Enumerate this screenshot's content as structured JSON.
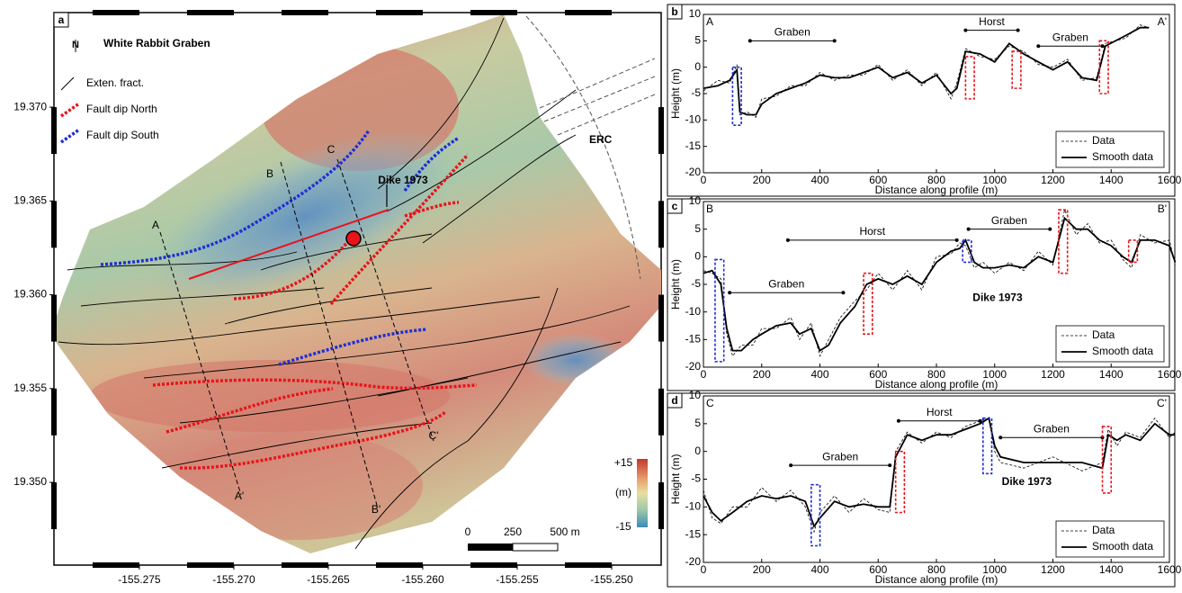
{
  "map": {
    "panel": "a",
    "north": "N",
    "title": "White Rabbit Graben",
    "legend": [
      {
        "label": "Exten. fract.",
        "color": "#000000",
        "style": "line"
      },
      {
        "label": "Fault dip North",
        "color": "#e8141b",
        "style": "dotted"
      },
      {
        "label": "Fault dip South",
        "color": "#1f2fd6",
        "style": "dotted"
      }
    ],
    "profile_labels": [
      "A",
      "B",
      "C",
      "A'",
      "B'",
      "C'"
    ],
    "dike_label": "Dike 1973",
    "erc_label": "ERC",
    "colorbar": {
      "max": "+15",
      "unit": "(m)",
      "min": "-15"
    },
    "scalebar": [
      "0",
      "250",
      "500 m"
    ],
    "xlim": [
      -155.27952,
      -155.24738
    ],
    "ylim": [
      19.34559,
      19.37504
    ],
    "xticks": [
      {
        "value": -155.275,
        "label": "-155.275"
      },
      {
        "value": -155.27,
        "label": "-155.270"
      },
      {
        "value": -155.265,
        "label": "-155.265"
      },
      {
        "value": -155.26,
        "label": "-155.260"
      },
      {
        "value": -155.255,
        "label": "-155.255"
      },
      {
        "value": -155.25,
        "label": "-155.250"
      }
    ],
    "yticks": [
      {
        "value": 19.37,
        "label": "19.370"
      },
      {
        "value": 19.365,
        "label": "19.365"
      },
      {
        "value": 19.36,
        "label": "19.360"
      },
      {
        "value": 19.355,
        "label": "19.355"
      },
      {
        "value": 19.35,
        "label": "19.350"
      }
    ]
  },
  "chart_data": [
    {
      "type": "line",
      "panel": "b",
      "corner_left": "A",
      "corner_right": "A'",
      "xlabel": "Distance along profile (m)",
      "ylabel": "Height (m)",
      "xlim": [
        0,
        1600
      ],
      "xticks": [
        0,
        200,
        400,
        600,
        800,
        1000,
        1200,
        1400,
        1600
      ],
      "ylim": [
        -20,
        10
      ],
      "yticks": [
        -20,
        -15,
        -10,
        -5,
        0,
        5,
        10
      ],
      "x": [
        0,
        50,
        90,
        115,
        125,
        150,
        180,
        200,
        250,
        300,
        350,
        400,
        450,
        500,
        550,
        600,
        650,
        700,
        750,
        800,
        850,
        870,
        900,
        950,
        1000,
        1050,
        1100,
        1150,
        1200,
        1250,
        1300,
        1350,
        1380,
        1450,
        1500,
        1530
      ],
      "series": [
        {
          "name": "Data",
          "color": "#000000",
          "style": "dashed",
          "values": [
            -4.5,
            -2.5,
            -3,
            0.5,
            -9,
            -8.5,
            -9.5,
            -6,
            -5.5,
            -3.5,
            -3.5,
            -1,
            -2.5,
            -1.5,
            -1.5,
            0.5,
            -2.5,
            -0.5,
            -3.5,
            -1,
            -6,
            -3,
            3.5,
            2,
            1.5,
            4,
            3,
            0.5,
            0,
            1.5,
            -2.5,
            -2,
            4.5,
            5.5,
            8,
            7.5
          ]
        },
        {
          "name": "Smooth data",
          "color": "#000000",
          "style": "solid",
          "values": [
            -4,
            -3.5,
            -2.5,
            -0.5,
            -8.5,
            -9,
            -9,
            -7,
            -5,
            -4,
            -3,
            -1.5,
            -2,
            -2,
            -1,
            0,
            -2,
            -1,
            -3,
            -1.5,
            -5,
            -4,
            3,
            2.5,
            1,
            4.5,
            2.5,
            1,
            -0.5,
            1,
            -2,
            -2.5,
            4,
            6,
            7.5,
            7.5
          ]
        }
      ],
      "brackets": [
        {
          "text": "Graben",
          "x": [
            160,
            450
          ],
          "y": 5
        },
        {
          "text": "Horst",
          "x": [
            900,
            1080
          ],
          "y": 7
        },
        {
          "text": "Graben",
          "x": [
            1150,
            1370
          ],
          "y": 4
        }
      ],
      "fault_boxes": [
        {
          "x": [
            100,
            130
          ],
          "y": [
            -11,
            0
          ],
          "color": "#1f2fd6"
        },
        {
          "x": [
            900,
            930
          ],
          "y": [
            -6,
            2
          ],
          "color": "#e8141b"
        },
        {
          "x": [
            1060,
            1090
          ],
          "y": [
            -4,
            3
          ],
          "color": "#e8141b"
        },
        {
          "x": [
            1360,
            1390
          ],
          "y": [
            -5,
            5
          ],
          "color": "#e8141b"
        }
      ],
      "labels": [],
      "legend": "lower right"
    },
    {
      "type": "line",
      "panel": "c",
      "corner_left": "B",
      "corner_right": "B'",
      "xlabel": "Distance along profile (m)",
      "ylabel": "Height (m)",
      "xlim": [
        0,
        1600
      ],
      "xticks": [
        0,
        200,
        400,
        600,
        800,
        1000,
        1200,
        1400,
        1600
      ],
      "ylim": [
        -20,
        10
      ],
      "yticks": [
        -20,
        -15,
        -10,
        -5,
        0,
        5,
        10
      ],
      "x": [
        0,
        30,
        60,
        80,
        100,
        130,
        170,
        200,
        250,
        300,
        330,
        370,
        400,
        430,
        470,
        520,
        560,
        600,
        650,
        700,
        750,
        800,
        850,
        880,
        900,
        930,
        960,
        1000,
        1050,
        1100,
        1150,
        1200,
        1240,
        1280,
        1320,
        1360,
        1400,
        1440,
        1470,
        1500,
        1550,
        1600,
        1620
      ],
      "series": [
        {
          "name": "Data",
          "color": "#000000",
          "style": "dashed",
          "values": [
            -2.5,
            -3,
            -4,
            -14,
            -18,
            -16,
            -16,
            -13,
            -13,
            -11,
            -15,
            -12,
            -18,
            -15,
            -11,
            -8,
            -6,
            -3,
            -6,
            -2.5,
            -6,
            0,
            0.5,
            2.5,
            2,
            -2,
            -1,
            -3,
            -1,
            -2.5,
            1,
            -1.5,
            8.5,
            4,
            6,
            2.5,
            3,
            -0.5,
            -2,
            4,
            2.5,
            3,
            -1.5
          ]
        },
        {
          "name": "Smooth data",
          "color": "#000000",
          "style": "solid",
          "values": [
            -3,
            -2.5,
            -5,
            -13,
            -17,
            -17,
            -15,
            -14,
            -12.5,
            -12,
            -14,
            -13,
            -17,
            -16,
            -12,
            -9,
            -5,
            -4,
            -5,
            -3.5,
            -5,
            -1,
            1,
            1.5,
            3,
            -1,
            -2,
            -2,
            -1.5,
            -2,
            0,
            -1,
            7,
            5,
            5,
            3,
            2,
            0,
            -1,
            3,
            3,
            2,
            -1
          ]
        }
      ],
      "brackets": [
        {
          "text": "Graben",
          "x": [
            90,
            480
          ],
          "y": -6.5
        },
        {
          "text": "Horst",
          "x": [
            290,
            870
          ],
          "y": 3
        },
        {
          "text": "Graben",
          "x": [
            910,
            1190
          ],
          "y": 5
        }
      ],
      "fault_boxes": [
        {
          "x": [
            40,
            70
          ],
          "y": [
            -19,
            -0.5
          ],
          "color": "#1f2fd6"
        },
        {
          "x": [
            550,
            580
          ],
          "y": [
            -14,
            -3
          ],
          "color": "#e8141b"
        },
        {
          "x": [
            890,
            920
          ],
          "y": [
            -1,
            3
          ],
          "color": "#1f2fd6"
        },
        {
          "x": [
            1220,
            1250
          ],
          "y": [
            -3,
            8.5
          ],
          "color": "#e8141b"
        },
        {
          "x": [
            1460,
            1490
          ],
          "y": [
            -1,
            3
          ],
          "color": "#e8141b"
        }
      ],
      "labels": [
        {
          "text": "Dike 1973",
          "x": 1010,
          "y": -7.5
        }
      ],
      "legend": "lower right"
    },
    {
      "type": "line",
      "panel": "d",
      "corner_left": "C",
      "corner_right": "C'",
      "xlabel": "Distance along profile (m)",
      "ylabel": "Height (m)",
      "xlim": [
        0,
        1600
      ],
      "xticks": [
        0,
        200,
        400,
        600,
        800,
        1000,
        1200,
        1400,
        1600
      ],
      "ylim": [
        -20,
        10
      ],
      "yticks": [
        -20,
        -15,
        -10,
        -5,
        0,
        5,
        10
      ],
      "x": [
        0,
        30,
        60,
        100,
        150,
        200,
        250,
        300,
        350,
        380,
        400,
        450,
        500,
        550,
        600,
        640,
        660,
        700,
        750,
        800,
        850,
        900,
        950,
        980,
        1000,
        1020,
        1100,
        1200,
        1300,
        1370,
        1390,
        1420,
        1450,
        1500,
        1550,
        1600,
        1620
      ],
      "series": [
        {
          "name": "Data",
          "color": "#000000",
          "style": "dashed",
          "values": [
            -7,
            -12,
            -13,
            -10,
            -10,
            -6.5,
            -9,
            -7,
            -10,
            -14.5,
            -11,
            -8,
            -11,
            -8.5,
            -10.5,
            -11,
            0,
            3.5,
            1.5,
            3.5,
            2.5,
            4.5,
            5.5,
            6,
            0,
            -2,
            -3,
            -1,
            -3.5,
            -2,
            4,
            1,
            3.5,
            2.5,
            6,
            2.5,
            3.5
          ]
        },
        {
          "name": "Smooth data",
          "color": "#000000",
          "style": "solid",
          "values": [
            -8,
            -11,
            -12.5,
            -11,
            -9,
            -8,
            -8.5,
            -8,
            -9,
            -13.5,
            -12,
            -9,
            -10,
            -9.5,
            -10,
            -10,
            -1,
            3,
            2,
            3,
            3,
            4,
            5,
            6,
            1,
            -1,
            -2,
            -2,
            -2,
            -3,
            3,
            2,
            3,
            2,
            5,
            3,
            3
          ]
        }
      ],
      "brackets": [
        {
          "text": "Graben",
          "x": [
            300,
            640
          ],
          "y": -2.5
        },
        {
          "text": "Horst",
          "x": [
            670,
            950
          ],
          "y": 5.5
        },
        {
          "text": "Graben",
          "x": [
            1020,
            1370
          ],
          "y": 2.5
        }
      ],
      "fault_boxes": [
        {
          "x": [
            370,
            400
          ],
          "y": [
            -17,
            -6
          ],
          "color": "#1f2fd6"
        },
        {
          "x": [
            660,
            690
          ],
          "y": [
            -11,
            0
          ],
          "color": "#e8141b"
        },
        {
          "x": [
            960,
            990
          ],
          "y": [
            -4,
            6
          ],
          "color": "#1f2fd6"
        },
        {
          "x": [
            1370,
            1400
          ],
          "y": [
            -7.5,
            4.5
          ],
          "color": "#e8141b"
        }
      ],
      "labels": [
        {
          "text": "Dike 1973",
          "x": 1110,
          "y": -5.5
        }
      ],
      "legend": "lower right"
    }
  ]
}
